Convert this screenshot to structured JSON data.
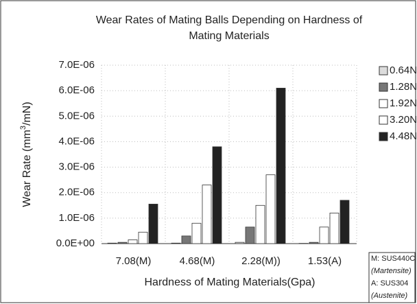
{
  "chart_data": {
    "type": "bar",
    "title": [
      "Wear Rates of Mating Balls Depending on Hardness of",
      "Mating Materials"
    ],
    "x_label": "Hardness of Mating Materials(Gpa)",
    "y_label": {
      "text": "Wear Rate (mm",
      "sup": "3",
      "tail": "/mN)"
    },
    "categories": [
      "7.08(M)",
      "4.68(M)",
      "2.28(M))",
      "1.53(A)"
    ],
    "series": [
      {
        "name": "0.64N",
        "color": "#dcdcdc",
        "values": [
          2e-08,
          2e-08,
          5e-08,
          1e-08
        ]
      },
      {
        "name": "1.28N",
        "color": "#777777",
        "values": [
          5e-08,
          3e-07,
          6.5e-07,
          5e-08
        ]
      },
      {
        "name": "1.92N",
        "color": "#ffffff",
        "values": [
          1.5e-07,
          8e-07,
          1.5e-06,
          6.5e-07
        ]
      },
      {
        "name": "3.20N",
        "color": "#ffffff",
        "values": [
          4.5e-07,
          2.3e-06,
          2.7e-06,
          1.2e-06
        ]
      },
      {
        "name": "4.48N",
        "color": "#222222",
        "values": [
          1.55e-06,
          3.8e-06,
          6.1e-06,
          1.7e-06
        ]
      }
    ],
    "ylim": [
      0,
      7e-06
    ],
    "yticks": [
      {
        "value": 0,
        "label": "0.0E+00"
      },
      {
        "value": 1e-06,
        "label": "1.0E-06"
      },
      {
        "value": 2e-06,
        "label": "2.0E-06"
      },
      {
        "value": 3e-06,
        "label": "3.0E-06"
      },
      {
        "value": 4e-06,
        "label": "4.0E-06"
      },
      {
        "value": 5e-06,
        "label": "5.0E-06"
      },
      {
        "value": 6e-06,
        "label": "6.0E-06"
      },
      {
        "value": 7e-06,
        "label": "7.0E-06"
      }
    ],
    "grid": true,
    "legend": "right",
    "note": [
      "M: SUS440C",
      "(Martensite)",
      "A: SUS304",
      "(Austenite)"
    ]
  }
}
